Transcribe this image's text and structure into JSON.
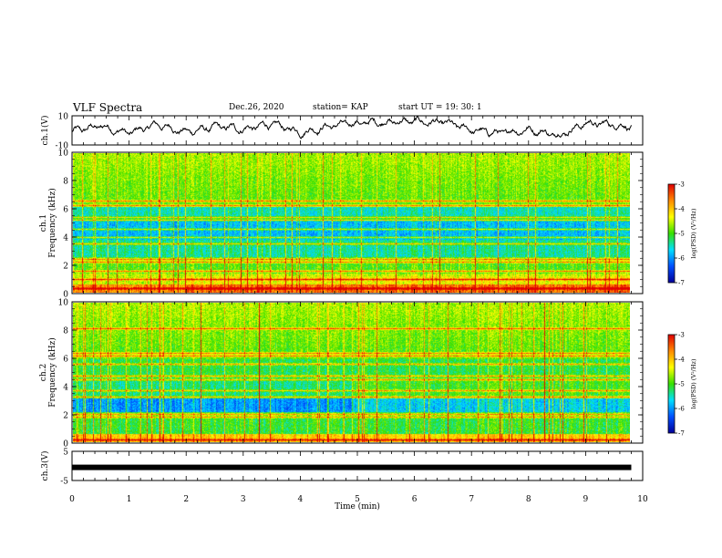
{
  "header": {
    "title": "VLF Spectra",
    "date": "Dec.26, 2020",
    "station": "station= KAP",
    "start": "start  UT =   19: 30: 1"
  },
  "colorbar": {
    "label": "log(PSD) (V²/Hz)",
    "ticks": [
      "-3",
      "-4",
      "-5",
      "-6",
      "-7"
    ],
    "colors": [
      "#e00000",
      "#ff8a00",
      "#ffff00",
      "#36e000",
      "#00e0ff",
      "#0050ff",
      "#00009a"
    ]
  },
  "chart_data": [
    {
      "type": "line",
      "panel": "ch1-waveform",
      "ylabel": "ch.1(V)",
      "ylim": [
        -10,
        10
      ],
      "yticks": [
        "10",
        "-10"
      ],
      "xlim": [
        0,
        10
      ],
      "description_values": "slowly varying envelope between about -5 and 6 V",
      "x": [
        0,
        0.5,
        1,
        1.5,
        2,
        2.5,
        3,
        3.5,
        4,
        4.5,
        5,
        5.5,
        6,
        6.5,
        7,
        7.5,
        8,
        8.5,
        9,
        9.5,
        9.8
      ],
      "y": [
        -1,
        3,
        -2,
        4,
        -1,
        2,
        1,
        4,
        -1,
        3,
        5,
        6,
        6,
        5,
        0,
        -2,
        1,
        -3,
        5,
        4,
        3
      ],
      "color": "#000000"
    },
    {
      "type": "heatmap",
      "panel": "ch1-spectrogram",
      "ylabel": "ch.1",
      "ylabel2": "Frequency (kHz)",
      "ylim": [
        0,
        10
      ],
      "yticks": [
        "0",
        "2",
        "4",
        "6",
        "8",
        "10"
      ],
      "xlim": [
        0,
        10
      ],
      "data_end_min": 9.8,
      "zlim": [
        -7,
        -3
      ],
      "zlabel": "log(PSD)(V²/Hz)"
    },
    {
      "type": "heatmap",
      "panel": "ch2-spectrogram",
      "ylabel": "ch.2",
      "ylabel2": "Frequency (kHz)",
      "ylim": [
        0,
        10
      ],
      "yticks": [
        "0",
        "2",
        "4",
        "6",
        "8",
        "10"
      ],
      "xlim": [
        0,
        10
      ],
      "data_end_min": 9.8,
      "zlim": [
        -7,
        -3
      ],
      "zlabel": "log(PSD)(V²/Hz)"
    },
    {
      "type": "line",
      "panel": "ch3-waveform",
      "ylabel": "ch.3(V)",
      "ylim": [
        -5,
        5
      ],
      "yticks": [
        "5",
        "-5"
      ],
      "xlim": [
        0,
        10
      ],
      "x": [
        0,
        9.8
      ],
      "y": [
        -0.5,
        -0.5
      ],
      "color": "#000000"
    }
  ],
  "xaxis": {
    "label": "Time (min)",
    "ticks": [
      "0",
      "1",
      "2",
      "3",
      "4",
      "5",
      "6",
      "7",
      "8",
      "9",
      "10"
    ]
  }
}
